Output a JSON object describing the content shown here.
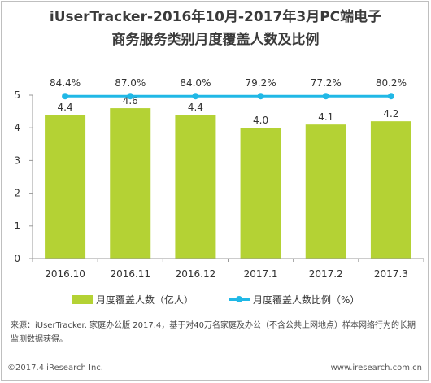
{
  "title_line1": "iUserTracker-2016年10月-2017年3月PC端电子",
  "title_line2": "商务服务类别月度覆盖人数及比例",
  "legend": {
    "bar_label": "月度覆盖人数（亿人）",
    "line_label": "月度覆盖人数比例（%）"
  },
  "source_text": "来源：iUserTracker. 家庭办公版 2017.4，基于对40万名家庭及办公（不含公共上网地点）样本网络行为的长期监测数据获得。",
  "copyright": "©2017.4 iResearch Inc.",
  "website": "www.iresearch.com.cn",
  "colors": {
    "bar": "#b4d234",
    "line": "#21b8e6",
    "axis": "#999999"
  },
  "chart_data": {
    "type": "bar",
    "categories": [
      "2016.10",
      "2016.11",
      "2016.12",
      "2017.1",
      "2017.2",
      "2017.3"
    ],
    "y_ticks": [
      "0",
      "1",
      "2",
      "3",
      "4",
      "5"
    ],
    "ylim": [
      0,
      5
    ],
    "series": [
      {
        "name": "月度覆盖人数（亿人）",
        "kind": "bar",
        "values": [
          4.4,
          4.6,
          4.4,
          4.0,
          4.1,
          4.2
        ],
        "value_labels": [
          "4.4",
          "4.6",
          "4.4",
          "4.0",
          "4.1",
          "4.2"
        ]
      },
      {
        "name": "月度覆盖人数比例（%）",
        "kind": "line",
        "values": [
          84.4,
          87.0,
          84.0,
          79.2,
          77.2,
          80.2
        ],
        "value_labels": [
          "84.4%",
          "87.0%",
          "84.0%",
          "79.2%",
          "77.2%",
          "80.2%"
        ],
        "display_level": 4.97
      }
    ]
  }
}
